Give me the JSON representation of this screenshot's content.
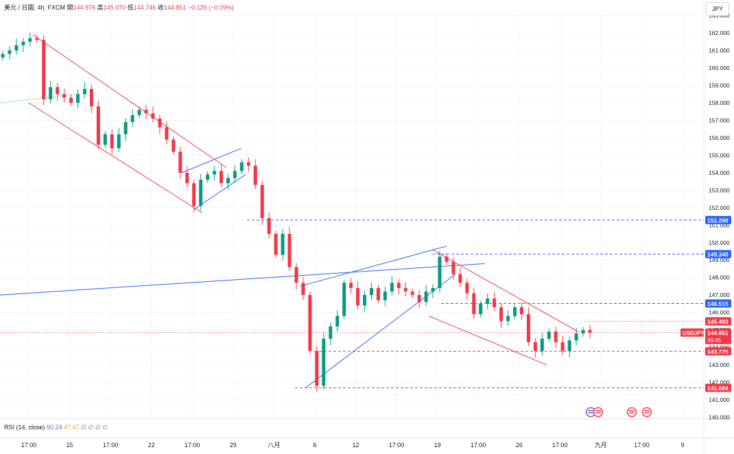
{
  "header": {
    "symbol": "美元 / 日圓, 4h, FXCM",
    "open_label": "開",
    "open": "144.976",
    "high_label": "高",
    "high": "145.070",
    "low_label": "低",
    "low": "144.746",
    "close_label": "收",
    "close": "144.851",
    "change": "−0.125 (−0.09%)"
  },
  "currency_button": "JPY",
  "rsi": {
    "label": "RSI (14, close)",
    "v1": "50.24",
    "v2": "47.47",
    "zeros": "∅ ∅ ∅ ∅"
  },
  "colors": {
    "up": "#089981",
    "down": "#f23645",
    "blue": "#2962ff",
    "grid": "#f0f3fa"
  },
  "chart_data": {
    "type": "line",
    "title": "",
    "ylim": [
      139.9,
      163.3
    ],
    "y_ticks": [
      140,
      141,
      142,
      143,
      144,
      145,
      146,
      147,
      148,
      149,
      150,
      151,
      152,
      153,
      154,
      155,
      156,
      157,
      158,
      159,
      160,
      161,
      162,
      163
    ],
    "x_ticks": [
      "17:00",
      "15",
      "17:00",
      "22",
      "17:00",
      "29",
      "八月",
      "6",
      "12",
      "17:00",
      "19",
      "17:00",
      "26",
      "17:00",
      "九月",
      "17:00",
      "9"
    ],
    "series": [
      {
        "values": [
          160.8,
          161.0,
          161.3,
          161.5,
          161.7,
          161.6,
          158.2,
          158.9,
          158.5,
          158.3,
          158.0,
          158.5,
          158.8,
          157.8,
          155.6,
          156.2,
          155.4,
          156.2,
          156.9,
          157.3,
          157.6,
          157.4,
          157.1,
          156.6,
          155.9,
          155.2,
          154.0,
          153.4,
          152.1,
          153.6,
          153.9,
          154.1,
          153.4,
          153.7,
          154.1,
          154.6,
          154.4,
          153.3,
          151.4,
          150.5,
          149.3,
          150.5,
          148.6,
          147.7,
          147.0,
          143.8,
          141.8,
          144.5,
          145.2,
          145.8,
          147.7,
          147.4,
          146.4,
          147.0,
          147.4,
          146.7,
          147.2,
          147.7,
          147.4,
          147.2,
          147.0,
          146.6,
          147.2,
          147.4,
          149.2,
          148.9,
          148.2,
          147.7,
          147.1,
          145.9,
          146.5,
          146.8,
          146.3,
          145.5,
          145.8,
          146.3,
          145.9,
          144.3,
          143.8,
          144.5,
          144.9,
          144.3,
          143.8,
          144.4,
          144.8,
          145.0,
          144.85
        ]
      }
    ],
    "price_labels": [
      {
        "text": "151.290",
        "style": "blue",
        "y": 151.29
      },
      {
        "text": "149.340",
        "style": "blue",
        "y": 149.34
      },
      {
        "text": "146.515",
        "style": "blue",
        "y": 146.515
      },
      {
        "text": "145.493",
        "style": "red",
        "y": 145.493
      },
      {
        "text": "144.851",
        "style": "red",
        "y": 144.851
      },
      {
        "text": "143.775",
        "style": "red",
        "y": 143.775
      },
      {
        "text": "141.684",
        "style": "red",
        "y": 141.684
      }
    ],
    "last_price_tag": {
      "symbol": "USDJPY",
      "price": "144.851",
      "countdown": "09:45"
    }
  }
}
